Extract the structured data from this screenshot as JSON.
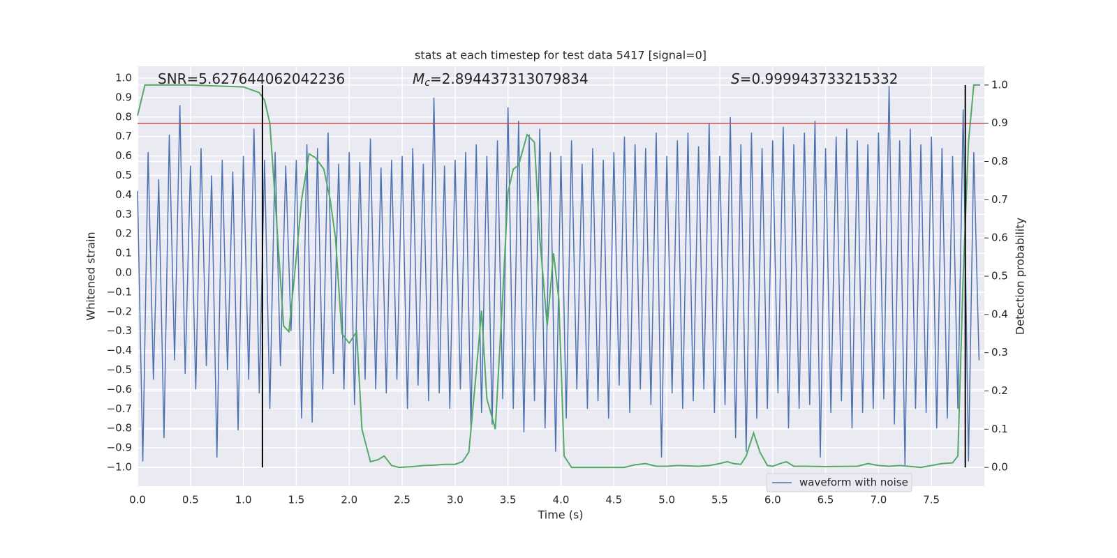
{
  "chart_data": {
    "type": "line",
    "title": "stats at each timestep for test data 5417 [signal=0]",
    "x_label": "Time (s)",
    "y_label": "Whitened strain",
    "y2_label": "Detection probability",
    "annotations": [
      {
        "text": "SNR=5.627644062042236"
      },
      {
        "symbol": "M",
        "sub": "c",
        "text": "=2.894437313079834"
      },
      {
        "symbol": "S",
        "text": "=0.999943733215332"
      }
    ],
    "xlim": [
      0,
      8.0
    ],
    "ylim": [
      -1.097,
      1.061
    ],
    "y2lim": [
      -0.049,
      1.049
    ],
    "xticks": [
      {
        "value": 0,
        "label": "0.0"
      },
      0.5,
      {
        "value": 1,
        "label": "1.0"
      },
      1.5,
      {
        "value": 2,
        "label": "2.0"
      },
      2.5,
      {
        "value": 3,
        "label": "3.0"
      },
      3.5,
      {
        "value": 4,
        "label": "4.0"
      },
      4.5,
      {
        "value": 5,
        "label": "5.0"
      },
      5.5,
      {
        "value": 6,
        "label": "6.0"
      },
      6.5,
      {
        "value": 7,
        "label": "7.0"
      },
      7.5
    ],
    "yticks": [
      {
        "value": -1,
        "label": "−1.0"
      },
      {
        "value": -0.9,
        "label": "−0.9"
      },
      {
        "value": -0.8,
        "label": "−0.8"
      },
      {
        "value": -0.7,
        "label": "−0.7"
      },
      {
        "value": -0.6,
        "label": "−0.6"
      },
      {
        "value": -0.5,
        "label": "−0.5"
      },
      {
        "value": -0.4,
        "label": "−0.4"
      },
      {
        "value": -0.3,
        "label": "−0.3"
      },
      {
        "value": -0.2,
        "label": "−0.2"
      },
      {
        "value": -0.1,
        "label": "−0.1"
      },
      {
        "value": 0,
        "label": "0.0"
      },
      0.1,
      0.2,
      0.3,
      0.4,
      0.5,
      0.6,
      0.7,
      0.8,
      0.9,
      {
        "value": 1,
        "label": "1.0"
      }
    ],
    "y2ticks": [
      {
        "value": 0,
        "label": "0.0"
      },
      0.1,
      0.2,
      0.3,
      0.4,
      0.5,
      0.6,
      0.7,
      0.8,
      0.9,
      {
        "value": 1,
        "label": "1.0"
      }
    ],
    "grid": true,
    "legend": "lower right",
    "series": [
      {
        "name": "waveform with noise",
        "color": "#4c72b0",
        "x": [
          0,
          0.05,
          0.1,
          0.15,
          0.2,
          0.25,
          0.3,
          0.35,
          0.4,
          0.45,
          0.5,
          0.55,
          0.6,
          0.65,
          0.7,
          0.75,
          0.8,
          0.85,
          0.9,
          0.95,
          1,
          1.05,
          1.1,
          1.15,
          1.2,
          1.25,
          1.3,
          1.35,
          1.4,
          1.45,
          1.5,
          1.55,
          1.6,
          1.65,
          1.7,
          1.75,
          1.8,
          1.85,
          1.9,
          1.95,
          2,
          2.05,
          2.1,
          2.15,
          2.2,
          2.25,
          2.3,
          2.35,
          2.4,
          2.45,
          2.5,
          2.55,
          2.6,
          2.65,
          2.7,
          2.75,
          2.8,
          2.85,
          2.9,
          2.95,
          3,
          3.05,
          3.1,
          3.15,
          3.2,
          3.25,
          3.3,
          3.35,
          3.4,
          3.45,
          3.5,
          3.55,
          3.6,
          3.65,
          3.7,
          3.75,
          3.8,
          3.85,
          3.9,
          3.95,
          4,
          4.05,
          4.1,
          4.15,
          4.2,
          4.25,
          4.3,
          4.35,
          4.4,
          4.45,
          4.5,
          4.55,
          4.6,
          4.65,
          4.7,
          4.75,
          4.8,
          4.85,
          4.9,
          4.95,
          5,
          5.05,
          5.1,
          5.15,
          5.2,
          5.25,
          5.3,
          5.35,
          5.4,
          5.45,
          5.5,
          5.55,
          5.6,
          5.65,
          5.7,
          5.75,
          5.8,
          5.85,
          5.9,
          5.95,
          6,
          6.05,
          6.1,
          6.15,
          6.2,
          6.25,
          6.3,
          6.35,
          6.4,
          6.45,
          6.5,
          6.55,
          6.6,
          6.65,
          6.7,
          6.75,
          6.8,
          6.85,
          6.9,
          6.95,
          7,
          7.05,
          7.1,
          7.15,
          7.2,
          7.25,
          7.3,
          7.35,
          7.4,
          7.45,
          7.5,
          7.55,
          7.6,
          7.65,
          7.7,
          7.75,
          7.8,
          7.85,
          7.9,
          7.95
        ],
        "values": [
          0.42,
          -0.97,
          0.62,
          -0.55,
          0.48,
          -0.85,
          0.71,
          -0.45,
          0.86,
          -0.52,
          0.55,
          -0.6,
          0.64,
          -0.48,
          0.5,
          -0.95,
          0.58,
          -0.5,
          0.52,
          -0.81,
          0.6,
          -0.55,
          0.74,
          -0.62,
          0.58,
          -0.7,
          0.62,
          -0.48,
          0.55,
          -0.3,
          0.58,
          -0.75,
          0.66,
          -0.77,
          0.64,
          -0.6,
          0.72,
          -0.52,
          0.56,
          -0.6,
          0.62,
          -0.68,
          0.57,
          -0.55,
          0.69,
          -0.6,
          0.54,
          -0.62,
          0.58,
          -0.55,
          0.6,
          -0.7,
          0.64,
          -0.58,
          0.56,
          -0.66,
          0.9,
          -0.62,
          0.55,
          -0.7,
          0.58,
          -0.6,
          0.62,
          -0.8,
          0.66,
          -0.72,
          0.6,
          -0.78,
          0.68,
          -0.65,
          0.85,
          -0.7,
          0.78,
          -0.82,
          0.71,
          -0.66,
          0.74,
          -0.8,
          0.62,
          -0.92,
          0.6,
          -0.75,
          0.68,
          -0.6,
          0.56,
          -0.7,
          0.64,
          -0.66,
          0.58,
          -0.75,
          0.62,
          -0.58,
          0.7,
          -0.72,
          0.66,
          -0.6,
          0.64,
          -0.68,
          0.72,
          -0.95,
          0.6,
          -0.62,
          0.68,
          -0.7,
          0.72,
          -0.66,
          0.65,
          -0.6,
          0.77,
          -0.72,
          0.6,
          -0.68,
          0.8,
          -0.85,
          0.66,
          -0.92,
          0.72,
          -0.75,
          0.64,
          -0.7,
          0.68,
          -0.62,
          0.75,
          -0.8,
          0.66,
          -0.7,
          0.72,
          -0.68,
          0.78,
          -0.95,
          0.64,
          -0.72,
          0.7,
          -0.66,
          0.74,
          -0.8,
          0.68,
          -0.72,
          0.66,
          -0.7,
          0.72,
          -0.65,
          0.96,
          -0.78,
          0.68,
          -0.99,
          0.74,
          -0.7,
          0.66,
          -0.72,
          0.7,
          -0.8,
          0.64,
          -0.75,
          0.6,
          -0.7,
          0.84,
          -0.97,
          0.62,
          -0.45
        ]
      },
      {
        "color": "#55a868",
        "axis": "y2",
        "x": [
          0,
          0.07,
          0.5,
          1.0,
          1.1,
          1.15,
          1.2,
          1.25,
          1.3,
          1.38,
          1.43,
          1.5,
          1.55,
          1.62,
          1.68,
          1.76,
          1.82,
          1.87,
          1.93,
          2.0,
          2.07,
          2.12,
          2.2,
          2.27,
          2.33,
          2.4,
          2.47,
          2.6,
          2.7,
          2.8,
          2.9,
          3.0,
          3.07,
          3.13,
          3.2,
          3.25,
          3.3,
          3.38,
          3.45,
          3.5,
          3.55,
          3.6,
          3.68,
          3.75,
          3.8,
          3.87,
          3.93,
          3.98,
          4.03,
          4.1,
          4.3,
          4.6,
          4.7,
          4.8,
          4.9,
          5.0,
          5.1,
          5.3,
          5.4,
          5.5,
          5.57,
          5.63,
          5.7,
          5.75,
          5.82,
          5.88,
          5.95,
          6.0,
          6.07,
          6.13,
          6.2,
          6.3,
          6.5,
          6.8,
          6.9,
          7.0,
          7.1,
          7.2,
          7.4,
          7.5,
          7.6,
          7.7,
          7.75,
          7.8,
          7.85,
          7.9,
          7.96
        ],
        "values": [
          0.92,
          1.0,
          1.0,
          0.995,
          0.985,
          0.98,
          0.96,
          0.9,
          0.7,
          0.37,
          0.355,
          0.55,
          0.7,
          0.82,
          0.81,
          0.78,
          0.7,
          0.6,
          0.35,
          0.325,
          0.355,
          0.1,
          0.015,
          0.02,
          0.03,
          0.005,
          0.0,
          0.002,
          0.005,
          0.006,
          0.008,
          0.008,
          0.015,
          0.04,
          0.25,
          0.41,
          0.18,
          0.1,
          0.45,
          0.72,
          0.78,
          0.79,
          0.87,
          0.85,
          0.6,
          0.37,
          0.56,
          0.44,
          0.03,
          0.0,
          0.0,
          0.0,
          0.007,
          0.01,
          0.003,
          0.003,
          0.005,
          0.003,
          0.005,
          0.01,
          0.015,
          0.01,
          0.008,
          0.03,
          0.09,
          0.04,
          0.005,
          0.003,
          0.01,
          0.015,
          0.003,
          0.003,
          0.002,
          0.003,
          0.01,
          0.005,
          0.003,
          0.005,
          0.0,
          0.005,
          0.01,
          0.012,
          0.03,
          0.5,
          0.85,
          1.0,
          1.0
        ]
      }
    ],
    "hlines": [
      {
        "y": 0.9,
        "axis": "y2",
        "color": "#c44e52"
      }
    ],
    "vlines": [
      {
        "x": 1.18,
        "ymin": 0,
        "ymax": 1,
        "axis": "y2",
        "color": "#000000"
      },
      {
        "x": 7.82,
        "ymin": 0,
        "ymax": 1,
        "axis": "y2",
        "color": "#000000"
      }
    ]
  }
}
